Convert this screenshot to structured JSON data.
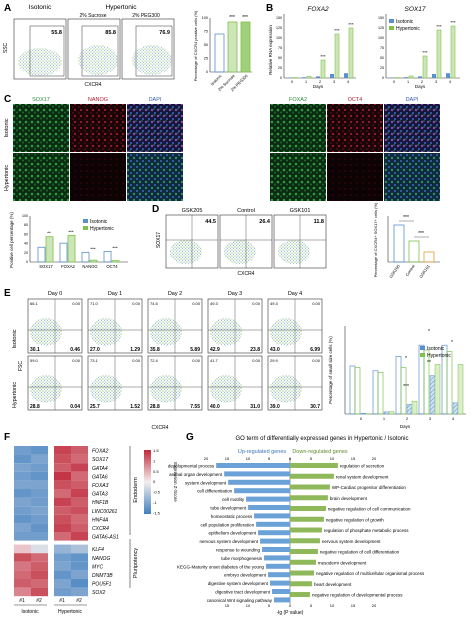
{
  "panel_labels": {
    "A": "A",
    "B": "B",
    "C": "C",
    "D": "D",
    "E": "E",
    "F": "F",
    "G": "G"
  },
  "colors": {
    "isotonic": "#5b8fd0",
    "hypertonic": "#7ec24a",
    "sox17_green": "#2f8a3a",
    "nanog_red": "#b02030",
    "dapi_blue": "#3a5fb0",
    "heat_high": "#c0283a",
    "heat_low": "#3f7fbf",
    "heat_mid": "#f2e6e6",
    "go_up": "#6aa1d6",
    "go_down": "#8fb85a"
  },
  "panelA": {
    "group_isotonic": "Isotonic",
    "group_hypertonic": "Hypertonic",
    "sub_sucrose": "2% Sucrose",
    "sub_peg": "2% PEG300",
    "ylabel": "SSC",
    "xlabel": "CXCR4",
    "gates": [
      "55.8",
      "85.8",
      "76.9"
    ],
    "bar_ylabel": "Percentage of CXCR4 positive cells (%)",
    "bar_xticks": [
      "Isotonic",
      "2% Sucrose",
      "2% PEG300"
    ],
    "bar_yticks": [
      "0",
      "25",
      "50",
      "75",
      "100"
    ],
    "sig": [
      "***",
      "***"
    ]
  },
  "panelB": {
    "title_left": "FOXA2",
    "title_right": "SOX17",
    "ylabel": "Relative RNA expression",
    "xlabel": "Days",
    "legend": [
      "Isotonic",
      "Hypertonic"
    ],
    "yticks": [
      "0",
      "25",
      "50",
      "75",
      "100",
      "125",
      "150"
    ],
    "xticks": [
      "0",
      "1",
      "2",
      "3",
      "4"
    ],
    "sig": "***"
  },
  "panelC": {
    "left_channels": [
      "SOX17",
      "NANOG",
      "DAPI"
    ],
    "right_channels": [
      "FOXA2",
      "OCT4",
      "DAPI"
    ],
    "rows": [
      "Isotonic",
      "Hypertonic"
    ],
    "bar_ylabel": "Positive cell percentage (%)",
    "bar_xticks": [
      "SOX17",
      "FOXA2",
      "NANOG",
      "OCT4"
    ],
    "legend": [
      "Isotonic",
      "Hypertonic"
    ],
    "sig": [
      "**",
      "***",
      "***",
      "***"
    ],
    "yticks": [
      "0",
      "20",
      "40",
      "60",
      "80",
      "100"
    ]
  },
  "panelD": {
    "conds": [
      "GSK205",
      "Control",
      "GSK101"
    ],
    "values": [
      "44.5",
      "26.4",
      "11.8"
    ],
    "ylabel": "SOX17",
    "xlabel": "CXCR4",
    "bar_ylabel": "Percentage of CXCR4+ SOX17+ cells (%)",
    "bar_xticks": [
      "GSK205",
      "Control",
      "GSK101"
    ],
    "sig": [
      "***",
      "***"
    ]
  },
  "panelE": {
    "days": [
      "Day 0",
      "Day 1",
      "Day 2",
      "Day 3",
      "Day 4"
    ],
    "rows": [
      "Isotonic",
      "Hypertonic"
    ],
    "ylabel": "FSC",
    "xlabel": "CXCR4",
    "iso_top": [
      "66.1",
      "71.0",
      "74.5",
      "49.3",
      "49.3"
    ],
    "iso_bottom": [
      [
        "30.1",
        "0.46"
      ],
      [
        "27.0",
        "1.29"
      ],
      [
        "35.8",
        "5.89"
      ],
      [
        "42.9",
        "23.8"
      ],
      [
        "43.0",
        "6.99"
      ]
    ],
    "iso_topright": [
      "0.00",
      "0.00",
      "0.00",
      "0.00",
      "0.00"
    ],
    "hyp_top": [
      "59.0",
      "73.1",
      "72.4",
      "41.7",
      "29.9"
    ],
    "hyp_bottom": [
      [
        "28.8",
        "0.04"
      ],
      [
        "25.7",
        "1.52"
      ],
      [
        "28.8",
        "7.55"
      ],
      [
        "40.0",
        "31.0"
      ],
      [
        "39.0",
        "30.7"
      ]
    ],
    "bar_ylabel": "Percentage of small size cells (%)",
    "legend": [
      "Isotonic",
      "Hypertonic"
    ],
    "xlabel2": "Days",
    "xticks": [
      "0",
      "1",
      "2",
      "3",
      "4"
    ],
    "sig": [
      "*",
      "***",
      "*",
      "**",
      "*"
    ]
  },
  "panelF": {
    "genes": [
      "FOXA2",
      "SOX17",
      "GATA4",
      "GATA6",
      "FOXA3",
      "GATA3",
      "HNF1B",
      "LINC00261",
      "HNF4A",
      "CXCR4",
      "GATA6-AS1",
      "KLF4",
      "NANOG",
      "MYC",
      "DNMT3B",
      "POU5F1",
      "SOX2"
    ],
    "group_endo": "Endoderm",
    "group_pluri": "Pluripotency",
    "cols": [
      "#1",
      "#2",
      "#1",
      "#2"
    ],
    "groups": [
      "Isotonic",
      "Hypertonic"
    ],
    "scale_label": "Expression Z-Score",
    "scale_ticks": [
      "1.5",
      "1",
      "0.5",
      "0",
      "-0.5",
      "-1",
      "-1.5"
    ]
  },
  "panelG": {
    "title": "GO term of differentially expressed genes in Hypertonic / Isotonic",
    "up_label": "Up-regulated genes",
    "down_label": "Down-regulated genes",
    "top_ticks": [
      "20",
      "15",
      "10",
      "5",
      "0",
      "5",
      "10",
      "15",
      "20"
    ],
    "bottom_ticks": [
      "15",
      "10",
      "5",
      "0",
      "5",
      "10",
      "15",
      "20"
    ],
    "xlabel": "-lg (P value)",
    "up_terms": [
      "developmental process",
      "animal organ development",
      "system development",
      "cell differentiation",
      "cell motility",
      "tube development",
      "homeostatic process",
      "cell population proliferation",
      "epithelium development",
      "nervous system development",
      "response to wounding",
      "tube morphogenesis",
      "KEGG-Maturity onset diabetes of the young",
      "embryo development",
      "digestive system development",
      "digestive tract development",
      "canonical Wnt signaling pathway"
    ],
    "up_values": [
      18.5,
      16.5,
      15.5,
      14,
      11,
      10.5,
      9,
      8.5,
      8,
      7.5,
      7,
      6.5,
      6,
      5.5,
      5,
      4.5,
      4
    ],
    "down_terms": [
      "regulation of secretion",
      "renal system development",
      "WP-Cardiac progenitor differentiation",
      "brain development",
      "negative regulation of cell communication",
      "negative regulation of growth",
      "regulation of phosphate metabolic process",
      "nervous system development",
      "negative regulation of cell differentiation",
      "mesoderm development",
      "negative regulation of multicellular organismal process",
      "heart development",
      "negative regulation of developmental process"
    ],
    "down_values": [
      12,
      11,
      10,
      9.5,
      9,
      8.5,
      8,
      7.5,
      7,
      6.5,
      6,
      5.5,
      5
    ]
  }
}
